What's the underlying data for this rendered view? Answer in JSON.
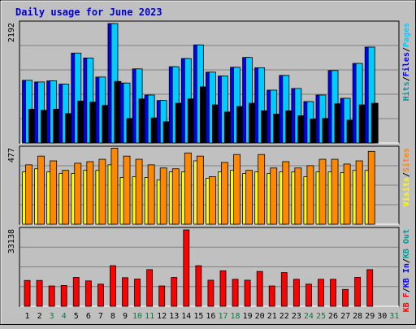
{
  "title": "Daily usage for June 2023",
  "colors": {
    "background": "#c0c0c0",
    "title": "#0000cc",
    "hits": "#009999",
    "files": "#0000ff",
    "pages": "#00ccff",
    "visits": "#ffff00",
    "sites": "#ff8800",
    "kb_out": "#009999",
    "kb_in": "#0000ff",
    "kb_f": "#ff0000",
    "weekend_day": "#008040"
  },
  "chart_data": [
    {
      "type": "bar",
      "name": "hits-files-pages",
      "ymax_label": "2192",
      "ylim": [
        0,
        2192
      ],
      "legend": [
        "Hits",
        "/",
        "Files",
        "/",
        "Pages"
      ],
      "series": [
        {
          "name": "Hits",
          "values": [
            1150,
            1120,
            1140,
            1080,
            1650,
            1560,
            1210,
            2192,
            1100,
            1360,
            880,
            780,
            1400,
            1550,
            1800,
            1300,
            1230,
            1390,
            1570,
            1380,
            970,
            1240,
            1000,
            760,
            880,
            1330,
            820,
            1460,
            1760
          ]
        },
        {
          "name": "Files",
          "values": [
            1150,
            1120,
            1140,
            1080,
            1650,
            1560,
            1210,
            2192,
            1100,
            1360,
            880,
            780,
            1400,
            1550,
            1800,
            1300,
            1230,
            1390,
            1570,
            1380,
            970,
            1240,
            1000,
            760,
            880,
            1330,
            820,
            1460,
            1760
          ]
        },
        {
          "name": "Pages",
          "values": [
            620,
            600,
            620,
            540,
            770,
            750,
            690,
            1130,
            450,
            810,
            460,
            390,
            730,
            810,
            1030,
            700,
            570,
            670,
            730,
            590,
            530,
            590,
            500,
            440,
            450,
            720,
            420,
            700,
            730
          ]
        }
      ]
    },
    {
      "type": "bar",
      "name": "visits-sites",
      "ymax_label": "477",
      "ylim": [
        0,
        477
      ],
      "legend": [
        "Visits",
        "/",
        "Sites"
      ],
      "series": [
        {
          "name": "Visits",
          "values": [
            330,
            350,
            330,
            320,
            320,
            340,
            340,
            375,
            295,
            300,
            295,
            280,
            330,
            330,
            400,
            290,
            330,
            340,
            320,
            330,
            320,
            330,
            330,
            300,
            330,
            330,
            325,
            340,
            340
          ]
        },
        {
          "name": "Sites",
          "values": [
            375,
            430,
            400,
            340,
            385,
            395,
            410,
            480,
            430,
            410,
            375,
            355,
            350,
            450,
            430,
            300,
            390,
            440,
            340,
            440,
            355,
            395,
            355,
            370,
            410,
            410,
            380,
            400,
            460
          ]
        }
      ]
    },
    {
      "type": "bar",
      "name": "kb-traffic",
      "ymax_label": "33138",
      "ylim": [
        0,
        33138
      ],
      "legend": [
        "KB F",
        "/",
        "KB In",
        "/",
        "KB Out"
      ],
      "series": [
        {
          "name": "KB F",
          "values": [
            11200,
            11200,
            8800,
            9000,
            12500,
            11000,
            9600,
            17600,
            12400,
            11800,
            15900,
            8800,
            12500,
            33138,
            17600,
            11300,
            15400,
            11700,
            11300,
            15100,
            8800,
            14600,
            11700,
            9600,
            11700,
            11700,
            7300,
            12500,
            15900
          ]
        },
        {
          "name": "KB In",
          "values": [
            0,
            0,
            0,
            0,
            0,
            0,
            0,
            0,
            0,
            0,
            0,
            0,
            0,
            0,
            0,
            0,
            0,
            0,
            0,
            0,
            0,
            0,
            0,
            0,
            0,
            0,
            0,
            0,
            0
          ]
        },
        {
          "name": "KB Out",
          "values": [
            0,
            0,
            0,
            0,
            0,
            0,
            0,
            0,
            0,
            0,
            0,
            0,
            0,
            0,
            0,
            0,
            0,
            0,
            0,
            0,
            0,
            0,
            0,
            0,
            0,
            0,
            0,
            0,
            0
          ]
        }
      ]
    }
  ],
  "days": [
    {
      "label": "1",
      "weekend": false
    },
    {
      "label": "2",
      "weekend": false
    },
    {
      "label": "3",
      "weekend": true
    },
    {
      "label": "4",
      "weekend": true
    },
    {
      "label": "5",
      "weekend": false
    },
    {
      "label": "6",
      "weekend": false
    },
    {
      "label": "7",
      "weekend": false
    },
    {
      "label": "8",
      "weekend": false
    },
    {
      "label": "9",
      "weekend": false
    },
    {
      "label": "10",
      "weekend": true
    },
    {
      "label": "11",
      "weekend": true
    },
    {
      "label": "12",
      "weekend": false
    },
    {
      "label": "13",
      "weekend": false
    },
    {
      "label": "14",
      "weekend": false
    },
    {
      "label": "15",
      "weekend": false
    },
    {
      "label": "16",
      "weekend": false
    },
    {
      "label": "17",
      "weekend": true
    },
    {
      "label": "18",
      "weekend": true
    },
    {
      "label": "19",
      "weekend": false
    },
    {
      "label": "20",
      "weekend": false
    },
    {
      "label": "21",
      "weekend": false
    },
    {
      "label": "22",
      "weekend": false
    },
    {
      "label": "23",
      "weekend": false
    },
    {
      "label": "24",
      "weekend": true
    },
    {
      "label": "25",
      "weekend": true
    },
    {
      "label": "26",
      "weekend": false
    },
    {
      "label": "27",
      "weekend": false
    },
    {
      "label": "28",
      "weekend": false
    },
    {
      "label": "29",
      "weekend": false
    },
    {
      "label": "30",
      "weekend": false
    },
    {
      "label": "31",
      "weekend": true
    }
  ]
}
